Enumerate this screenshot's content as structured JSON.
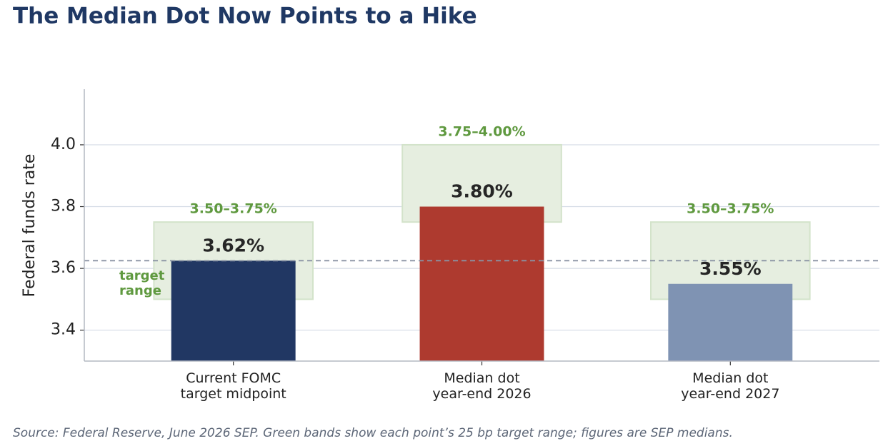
{
  "chart_data": {
    "type": "bar",
    "title": "The Median Dot Now Points to a Hike",
    "y_label": "Federal funds rate",
    "categories": [
      "Current FOMC\ntarget midpoint",
      "Median dot\nyear-end 2026",
      "Median dot\nyear-end 2027"
    ],
    "values": [
      3.625,
      3.8,
      3.55
    ],
    "value_labels": [
      "3.62%",
      "3.80%",
      "3.55%"
    ],
    "colors": [
      "#213763",
      "#ae3a2f",
      "#7f93b3"
    ],
    "ranges": [
      {
        "low": 3.5,
        "high": 3.75,
        "label": "3.50–3.75%"
      },
      {
        "low": 3.75,
        "high": 4.0,
        "label": "3.75–4.00%"
      },
      {
        "low": 3.5,
        "high": 3.75,
        "label": "3.50–3.75%"
      }
    ],
    "reference_line": 3.625,
    "annotation": "target\nrange",
    "ylim": [
      3.3,
      4.18
    ],
    "yticks": [
      3.4,
      3.6,
      3.8,
      {
        "value": 4,
        "label": "4.0"
      }
    ],
    "grid": true,
    "source": "Source: Federal Reserve, June 2026 SEP. Green bands show each point’s 25 bp target range; figures are SEP medians."
  }
}
